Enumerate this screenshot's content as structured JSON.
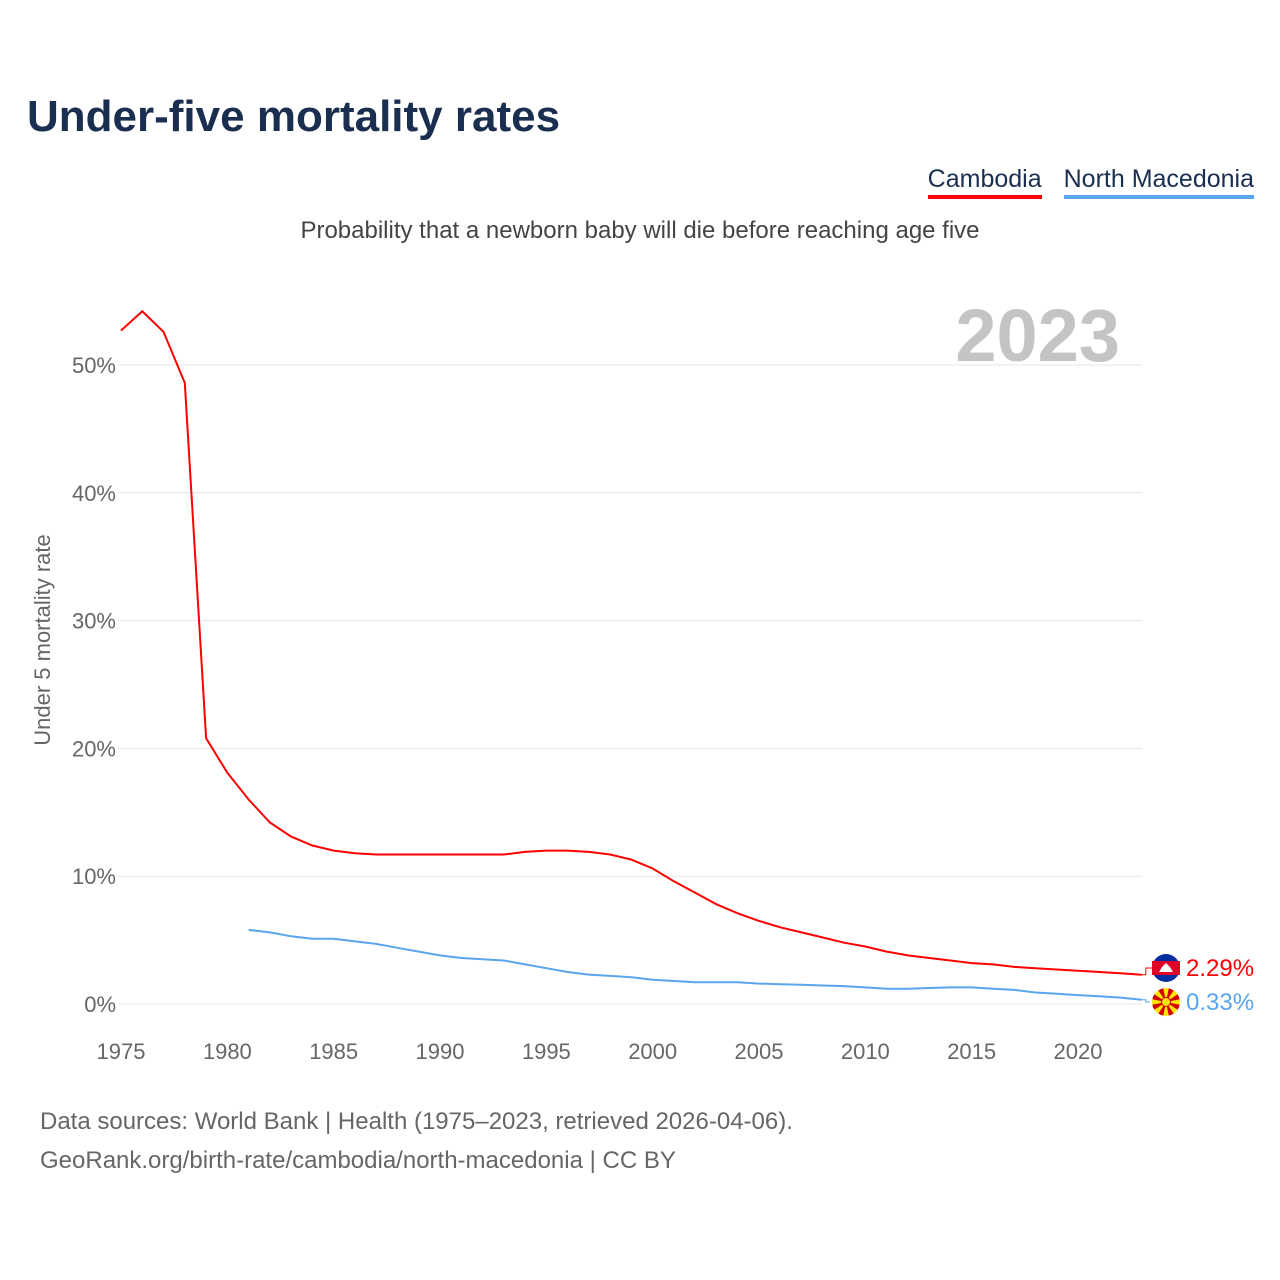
{
  "title": "Under-five mortality rates",
  "subtitle": "Probability that a newborn baby will die before reaching age five",
  "year_label": "2023",
  "footer": {
    "line1": "Data sources: World Bank | Health (1975–2023, retrieved 2026-04-06).",
    "line2": "GeoRank.org/birth-rate/cambodia/north-macedonia | CC BY"
  },
  "chart_data": {
    "type": "line",
    "title": "Under-five mortality rates",
    "ylabel": "Under 5 mortality rate",
    "xlabel": "",
    "xlim": [
      1975,
      2023
    ],
    "ylim": [
      0,
      55
    ],
    "x_ticks": [
      1975,
      1980,
      1985,
      1990,
      1995,
      2000,
      2005,
      2010,
      2015,
      2020
    ],
    "y_ticks": [
      0,
      10,
      20,
      30,
      40,
      50
    ],
    "y_tick_labels": [
      "0%",
      "10%",
      "20%",
      "30%",
      "40%",
      "50%"
    ],
    "grid": true,
    "legend": "top-right",
    "series": [
      {
        "name": "Cambodia",
        "color": "#ff0000",
        "end_label": "2.29%",
        "flag": "cambodia-flag",
        "start": 1975,
        "values": [
          52.7,
          54.2,
          52.6,
          48.6,
          20.8,
          18.1,
          16.0,
          14.2,
          13.1,
          12.4,
          12.0,
          11.8,
          11.7,
          11.7,
          11.7,
          11.7,
          11.7,
          11.7,
          11.7,
          11.9,
          12.0,
          12.0,
          11.9,
          11.7,
          11.3,
          10.6,
          9.6,
          8.7,
          7.8,
          7.1,
          6.5,
          6.0,
          5.6,
          5.2,
          4.8,
          4.5,
          4.1,
          3.8,
          3.6,
          3.4,
          3.2,
          3.1,
          2.9,
          2.8,
          2.7,
          2.6,
          2.5,
          2.4,
          2.29
        ]
      },
      {
        "name": "North Macedonia",
        "color": "#5aa5ee",
        "end_label": "0.33%",
        "flag": "north-macedonia-flag",
        "start": 1981,
        "values": [
          5.8,
          5.6,
          5.3,
          5.1,
          5.1,
          4.9,
          4.7,
          4.4,
          4.1,
          3.8,
          3.6,
          3.5,
          3.4,
          3.1,
          2.8,
          2.5,
          2.3,
          2.2,
          2.1,
          1.9,
          1.8,
          1.7,
          1.7,
          1.7,
          1.6,
          1.55,
          1.5,
          1.45,
          1.4,
          1.3,
          1.2,
          1.2,
          1.25,
          1.3,
          1.3,
          1.2,
          1.1,
          0.9,
          0.8,
          0.7,
          0.6,
          0.5,
          0.33
        ]
      }
    ]
  }
}
